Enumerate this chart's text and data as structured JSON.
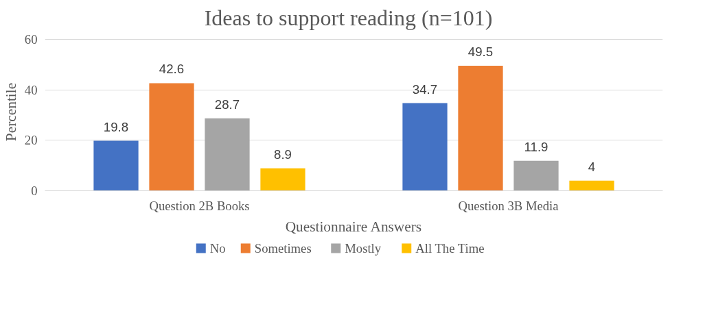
{
  "chart_data": {
    "type": "bar",
    "title": "Ideas to support reading   (n=101)",
    "xlabel": "Questionnaire Answers",
    "ylabel": "Percentile",
    "categories": [
      "Question 2B Books",
      "Question 3B Media"
    ],
    "series": [
      {
        "name": "No",
        "color": "#4472c4",
        "values": [
          19.8,
          34.7
        ]
      },
      {
        "name": "Sometimes",
        "color": "#ed7d31",
        "values": [
          42.6,
          49.5
        ]
      },
      {
        "name": "Mostly",
        "color": "#a5a5a5",
        "values": [
          28.7,
          11.9
        ]
      },
      {
        "name": "All The Time",
        "color": "#ffc000",
        "values": [
          8.9,
          4
        ]
      }
    ],
    "ylim": [
      0,
      60
    ],
    "yticks": [
      0,
      20,
      40,
      60
    ],
    "grid": "y",
    "legend": "bottom",
    "data_labels": true
  }
}
